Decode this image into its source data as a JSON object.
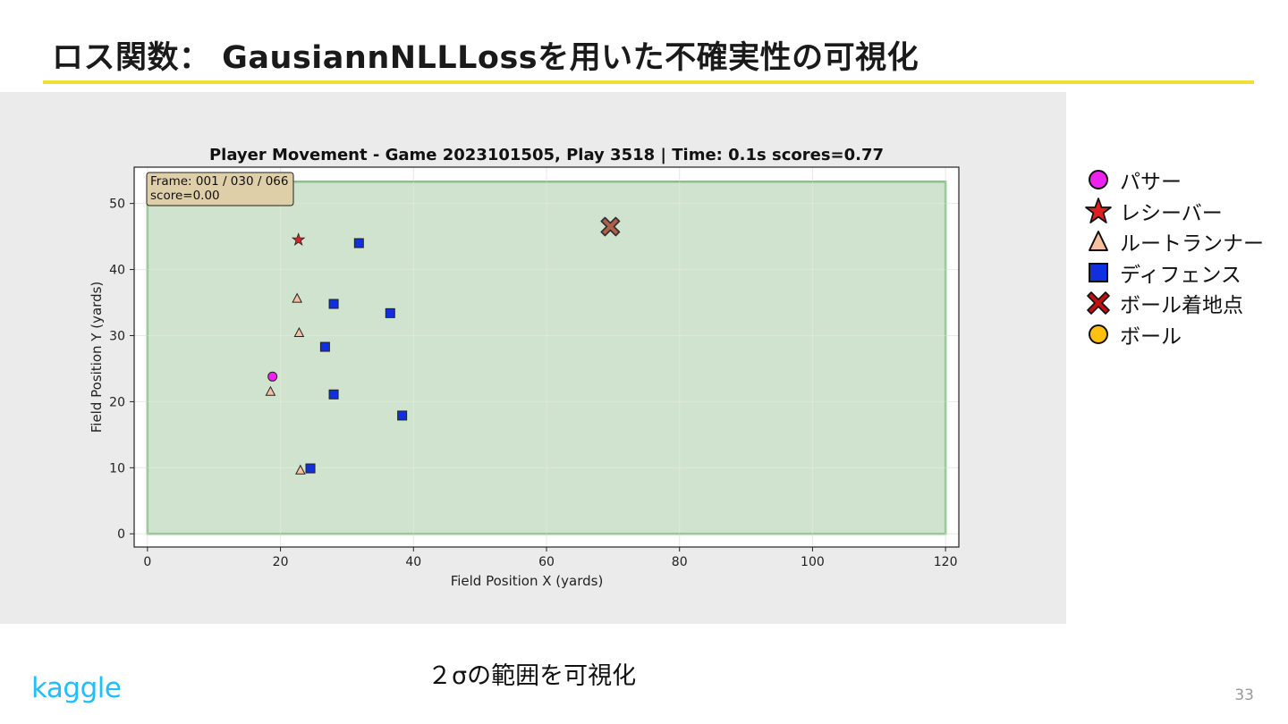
{
  "slide": {
    "title": "ロス関数： GausiannNLLLossを用いた不確実性の可視化",
    "caption": "２σの範囲を可視化",
    "logo": "kaggle",
    "page_number": "33"
  },
  "colors": {
    "title_rule": "#f2e03a",
    "field_fill": "#cce2cc",
    "field_border": "#8ec08e",
    "panel_bg": "#ebebeb",
    "passer": "#ee22ee",
    "receiver": "#e02020",
    "route_runner": "#f8c0a0",
    "defense": "#1030e0",
    "landing": "#b06048",
    "ball": "#ffc010"
  },
  "legend": {
    "items": [
      {
        "label": "パサー",
        "icon": "circle-magenta"
      },
      {
        "label": "レシーバー",
        "icon": "star-red"
      },
      {
        "label": "ルートランナー",
        "icon": "triangle-peach"
      },
      {
        "label": "ディフェンス",
        "icon": "square-blue"
      },
      {
        "label": "ボール着地点",
        "icon": "x-mark-red"
      },
      {
        "label": "ボール",
        "icon": "circle-gold"
      }
    ]
  },
  "chart_data": {
    "type": "scatter",
    "title": "Player Movement - Game 2023101505, Play 3518 | Time: 0.1s scores=0.77",
    "xlabel": "Field Position X (yards)",
    "ylabel": "Field Position Y (yards)",
    "xlim": [
      -2,
      122
    ],
    "ylim": [
      -2,
      55.5
    ],
    "xticks": [
      0,
      20,
      40,
      60,
      80,
      100,
      120
    ],
    "yticks": [
      0,
      10,
      20,
      30,
      40,
      50
    ],
    "grid": true,
    "field_rect": {
      "x": [
        0,
        120
      ],
      "y": [
        0,
        53.3
      ]
    },
    "annotation": "Frame: 001 / 030 / 066\nscore=0.00",
    "series": [
      {
        "name": "パサー",
        "marker": "circle",
        "points": [
          [
            18.8,
            23.8
          ]
        ]
      },
      {
        "name": "レシーバー",
        "marker": "star",
        "points": [
          [
            22.7,
            44.5
          ]
        ]
      },
      {
        "name": "ルートランナー",
        "marker": "triangle",
        "points": [
          [
            22.5,
            35.6
          ],
          [
            22.8,
            30.4
          ],
          [
            18.5,
            21.5
          ],
          [
            23.0,
            9.6
          ]
        ]
      },
      {
        "name": "ディフェンス",
        "marker": "square",
        "points": [
          [
            31.8,
            44.0
          ],
          [
            28.0,
            34.8
          ],
          [
            36.5,
            33.4
          ],
          [
            26.7,
            28.3
          ],
          [
            28.0,
            21.1
          ],
          [
            38.3,
            17.9
          ],
          [
            24.5,
            9.9
          ]
        ]
      },
      {
        "name": "ボール着地点",
        "marker": "x",
        "points": [
          [
            69.6,
            46.5
          ]
        ]
      }
    ]
  }
}
